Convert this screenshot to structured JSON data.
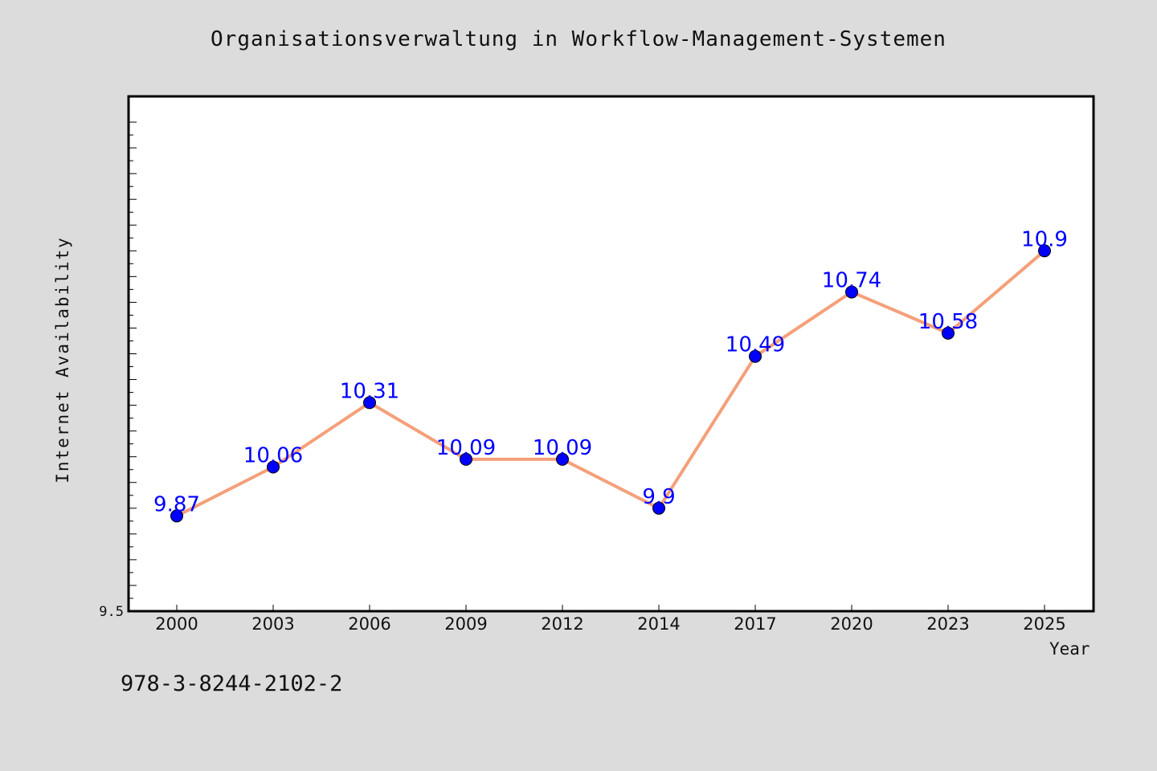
{
  "chart_data": {
    "type": "line",
    "title": "Organisationsverwaltung in Workflow-Management-Systemen",
    "xlabel": "Year",
    "ylabel": "Internet Availability",
    "categories": [
      "2000",
      "2003",
      "2006",
      "2009",
      "2012",
      "2014",
      "2017",
      "2020",
      "2023",
      "2025"
    ],
    "series": [
      {
        "values": [
          9.87,
          10.06,
          10.31,
          10.09,
          10.09,
          9.9,
          10.49,
          10.74,
          10.58,
          10.9
        ],
        "data_labels": [
          "9.87",
          "10.06",
          "10.31",
          "10.09",
          "10.09",
          "9.9",
          "10.49",
          "10.74",
          "10.58",
          "10.9"
        ],
        "line_color": "#f4a07a",
        "marker_color": "#0000ff"
      }
    ],
    "ylim": [
      9.5,
      11.5
    ],
    "y_tick_labels": [
      "9.5"
    ],
    "grid": false,
    "legend": "none"
  },
  "footer": {
    "isbn": "978-3-8244-2102-2"
  },
  "colors": {
    "background": "#dcdcdc",
    "plot_background": "#ffffff",
    "axis": "#000000"
  }
}
